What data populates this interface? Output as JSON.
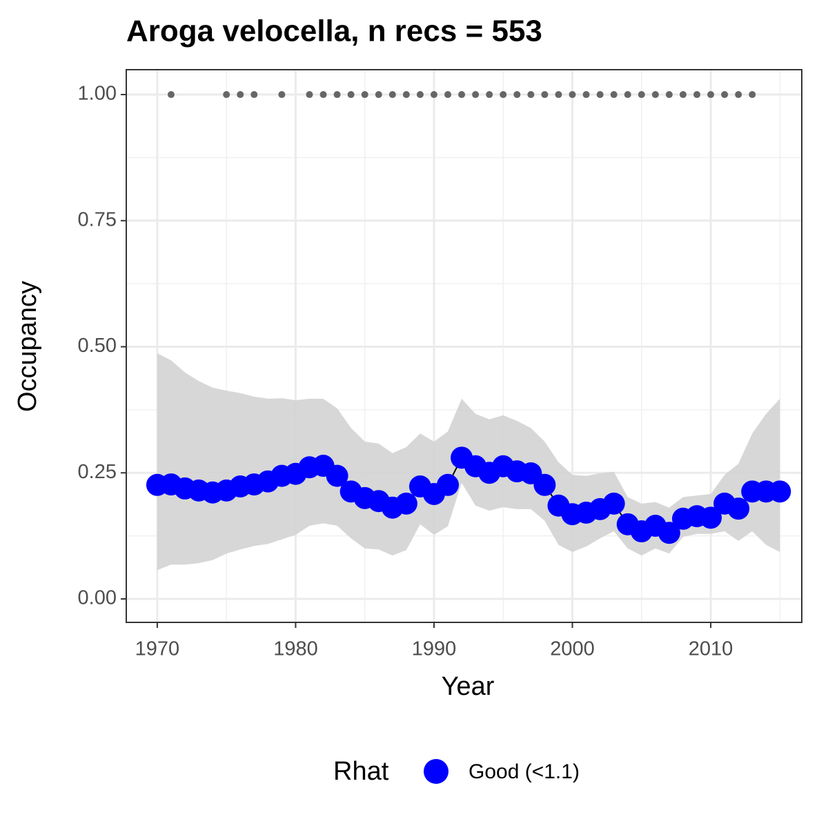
{
  "chart_data": {
    "type": "line",
    "title": "Aroga velocella, n recs = 553",
    "x_label": "Year",
    "y_label": "Occupancy",
    "legend_title": "Rhat",
    "x": [
      1970,
      1971,
      1972,
      1973,
      1974,
      1975,
      1976,
      1977,
      1978,
      1979,
      1980,
      1981,
      1982,
      1983,
      1984,
      1985,
      1986,
      1987,
      1988,
      1989,
      1990,
      1991,
      1992,
      1993,
      1994,
      1995,
      1996,
      1997,
      1998,
      1999,
      2000,
      2001,
      2002,
      2003,
      2004,
      2005,
      2006,
      2007,
      2008,
      2009,
      2010,
      2011,
      2012,
      2013,
      2014,
      2015
    ],
    "series": [
      {
        "name": "Good (<1.1)",
        "color": "#0000ff",
        "values": [
          0.226,
          0.227,
          0.219,
          0.215,
          0.211,
          0.215,
          0.223,
          0.227,
          0.233,
          0.244,
          0.248,
          0.261,
          0.264,
          0.244,
          0.213,
          0.2,
          0.194,
          0.181,
          0.189,
          0.223,
          0.208,
          0.226,
          0.28,
          0.263,
          0.25,
          0.263,
          0.253,
          0.249,
          0.226,
          0.185,
          0.168,
          0.171,
          0.178,
          0.189,
          0.148,
          0.134,
          0.145,
          0.131,
          0.159,
          0.164,
          0.161,
          0.189,
          0.179,
          0.213,
          0.213,
          0.213
        ]
      }
    ],
    "band": {
      "color": "#d3d3d3",
      "upper": [
        0.487,
        0.473,
        0.449,
        0.432,
        0.419,
        0.413,
        0.408,
        0.401,
        0.397,
        0.398,
        0.394,
        0.397,
        0.397,
        0.378,
        0.339,
        0.312,
        0.308,
        0.289,
        0.301,
        0.328,
        0.312,
        0.332,
        0.397,
        0.367,
        0.356,
        0.364,
        0.353,
        0.339,
        0.312,
        0.271,
        0.246,
        0.244,
        0.249,
        0.252,
        0.202,
        0.189,
        0.192,
        0.181,
        0.202,
        0.205,
        0.208,
        0.246,
        0.268,
        0.328,
        0.367,
        0.397
      ],
      "lower": [
        0.057,
        0.068,
        0.068,
        0.071,
        0.077,
        0.09,
        0.098,
        0.105,
        0.109,
        0.118,
        0.127,
        0.145,
        0.15,
        0.145,
        0.12,
        0.1,
        0.098,
        0.086,
        0.097,
        0.148,
        0.127,
        0.144,
        0.23,
        0.185,
        0.175,
        0.182,
        0.178,
        0.178,
        0.155,
        0.107,
        0.093,
        0.104,
        0.12,
        0.134,
        0.1,
        0.086,
        0.1,
        0.09,
        0.123,
        0.129,
        0.129,
        0.134,
        0.115,
        0.134,
        0.107,
        0.093
      ]
    },
    "records": {
      "color": "#666666",
      "x": [
        1971,
        1975,
        1976,
        1977,
        1979,
        1981,
        1982,
        1983,
        1984,
        1985,
        1986,
        1987,
        1988,
        1989,
        1990,
        1991,
        1992,
        1993,
        1994,
        1995,
        1996,
        1997,
        1998,
        1999,
        2000,
        2001,
        2002,
        2003,
        2004,
        2005,
        2006,
        2007,
        2008,
        2009,
        2010,
        2011,
        2012,
        2013
      ],
      "values": [
        1,
        1,
        1,
        1,
        1,
        1,
        1,
        1,
        1,
        1,
        1,
        1,
        1,
        1,
        1,
        1,
        1,
        1,
        1,
        1,
        1,
        1,
        1,
        1,
        1,
        1,
        1,
        1,
        1,
        1,
        1,
        1,
        1,
        1,
        1,
        1,
        1,
        1
      ]
    },
    "xlim": [
      1967.76,
      2016.58
    ],
    "ylim": [
      -0.0465,
      1.0493
    ],
    "xticks": [
      1970,
      1980,
      1990,
      2000,
      2010
    ],
    "yticks": [
      {
        "value": 0,
        "label": "0.00"
      },
      {
        "value": 0.25,
        "label": "0.25"
      },
      {
        "value": 0.5,
        "label": "0.50"
      },
      {
        "value": 0.75,
        "label": "0.75"
      },
      {
        "value": 1,
        "label": "1.00"
      }
    ],
    "grid": true
  }
}
